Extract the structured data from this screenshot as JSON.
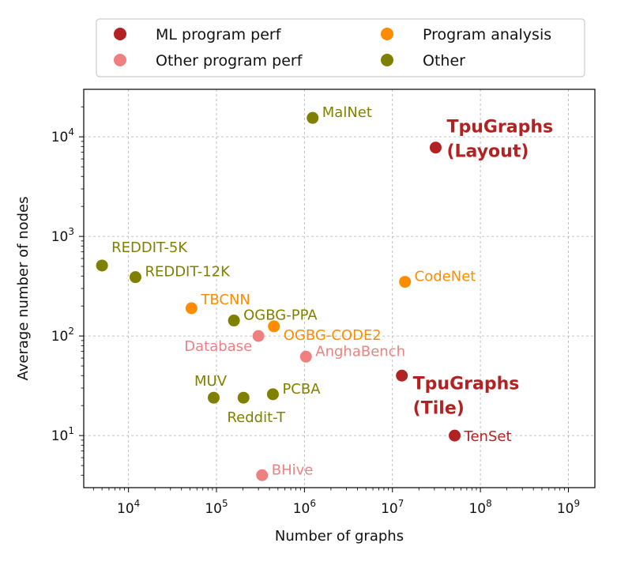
{
  "chart_data": {
    "type": "scatter",
    "xlabel": "Number of graphs",
    "ylabel": "Average number of nodes",
    "xscale": "log",
    "yscale": "log",
    "xlim": [
      3100,
      2000000000
    ],
    "ylim": [
      3,
      30000
    ],
    "grid": true,
    "grid_style": "dashed",
    "legend_position": "top-center",
    "x_ticks": [
      {
        "value": 10000,
        "base": "10",
        "exp": "4"
      },
      {
        "value": 100000,
        "base": "10",
        "exp": "5"
      },
      {
        "value": 1000000,
        "base": "10",
        "exp": "6"
      },
      {
        "value": 10000000,
        "base": "10",
        "exp": "7"
      },
      {
        "value": 100000000,
        "base": "10",
        "exp": "8"
      },
      {
        "value": 1000000000,
        "base": "10",
        "exp": "9"
      }
    ],
    "y_ticks": [
      {
        "value": 10,
        "base": "10",
        "exp": "1"
      },
      {
        "value": 100,
        "base": "10",
        "exp": "2"
      },
      {
        "value": 1000,
        "base": "10",
        "exp": "3"
      },
      {
        "value": 10000,
        "base": "10",
        "exp": "4"
      }
    ],
    "series": [
      {
        "name": "ML program perf",
        "color": "#b22222",
        "points": [
          {
            "label": "TpuGraphs (Layout)",
            "lines": [
              "TpuGraphs",
              "(Layout)"
            ],
            "x": 31000000,
            "y": 7800,
            "bold": true
          },
          {
            "label": "TpuGraphs (Tile)",
            "lines": [
              "TpuGraphs",
              "(Tile)"
            ],
            "x": 12800000,
            "y": 40,
            "bold": true
          },
          {
            "label": "TenSet",
            "lines": [
              "TenSet"
            ],
            "x": 51000000,
            "y": 10
          }
        ]
      },
      {
        "name": "Other program perf",
        "color": "#f08080",
        "points": [
          {
            "label": "Database",
            "lines": [
              "Database"
            ],
            "x": 300000,
            "y": 100
          },
          {
            "label": "AnghaBench",
            "lines": [
              "AnghaBench"
            ],
            "x": 1040000,
            "y": 62
          },
          {
            "label": "BHive",
            "lines": [
              "BHive"
            ],
            "x": 330000,
            "y": 4
          }
        ]
      },
      {
        "name": "Program analysis",
        "color": "#ff8c00",
        "points": [
          {
            "label": "CodeNet",
            "lines": [
              "CodeNet"
            ],
            "x": 13900000,
            "y": 350
          },
          {
            "label": "TBCNN",
            "lines": [
              "TBCNN"
            ],
            "x": 52000,
            "y": 190
          },
          {
            "label": "OGBG-CODE2",
            "lines": [
              "OGBG-CODE2"
            ],
            "x": 450000,
            "y": 125
          }
        ]
      },
      {
        "name": "Other",
        "color": "#808000",
        "points": [
          {
            "label": "MalNet",
            "lines": [
              "MalNet"
            ],
            "x": 1240000,
            "y": 15500
          },
          {
            "label": "REDDIT-5K",
            "lines": [
              "REDDIT-5K"
            ],
            "x": 5000,
            "y": 510
          },
          {
            "label": "REDDIT-12K",
            "lines": [
              "REDDIT-12K"
            ],
            "x": 12000,
            "y": 390
          },
          {
            "label": "OGBG-PPA",
            "lines": [
              "OGBG-PPA"
            ],
            "x": 158000,
            "y": 143
          },
          {
            "label": "MUV",
            "lines": [
              "MUV"
            ],
            "x": 93000,
            "y": 24
          },
          {
            "label": "Reddit-T",
            "lines": [
              "Reddit-T"
            ],
            "x": 203000,
            "y": 24
          },
          {
            "label": "PCBA",
            "lines": [
              "PCBA"
            ],
            "x": 438000,
            "y": 26
          }
        ]
      }
    ]
  }
}
